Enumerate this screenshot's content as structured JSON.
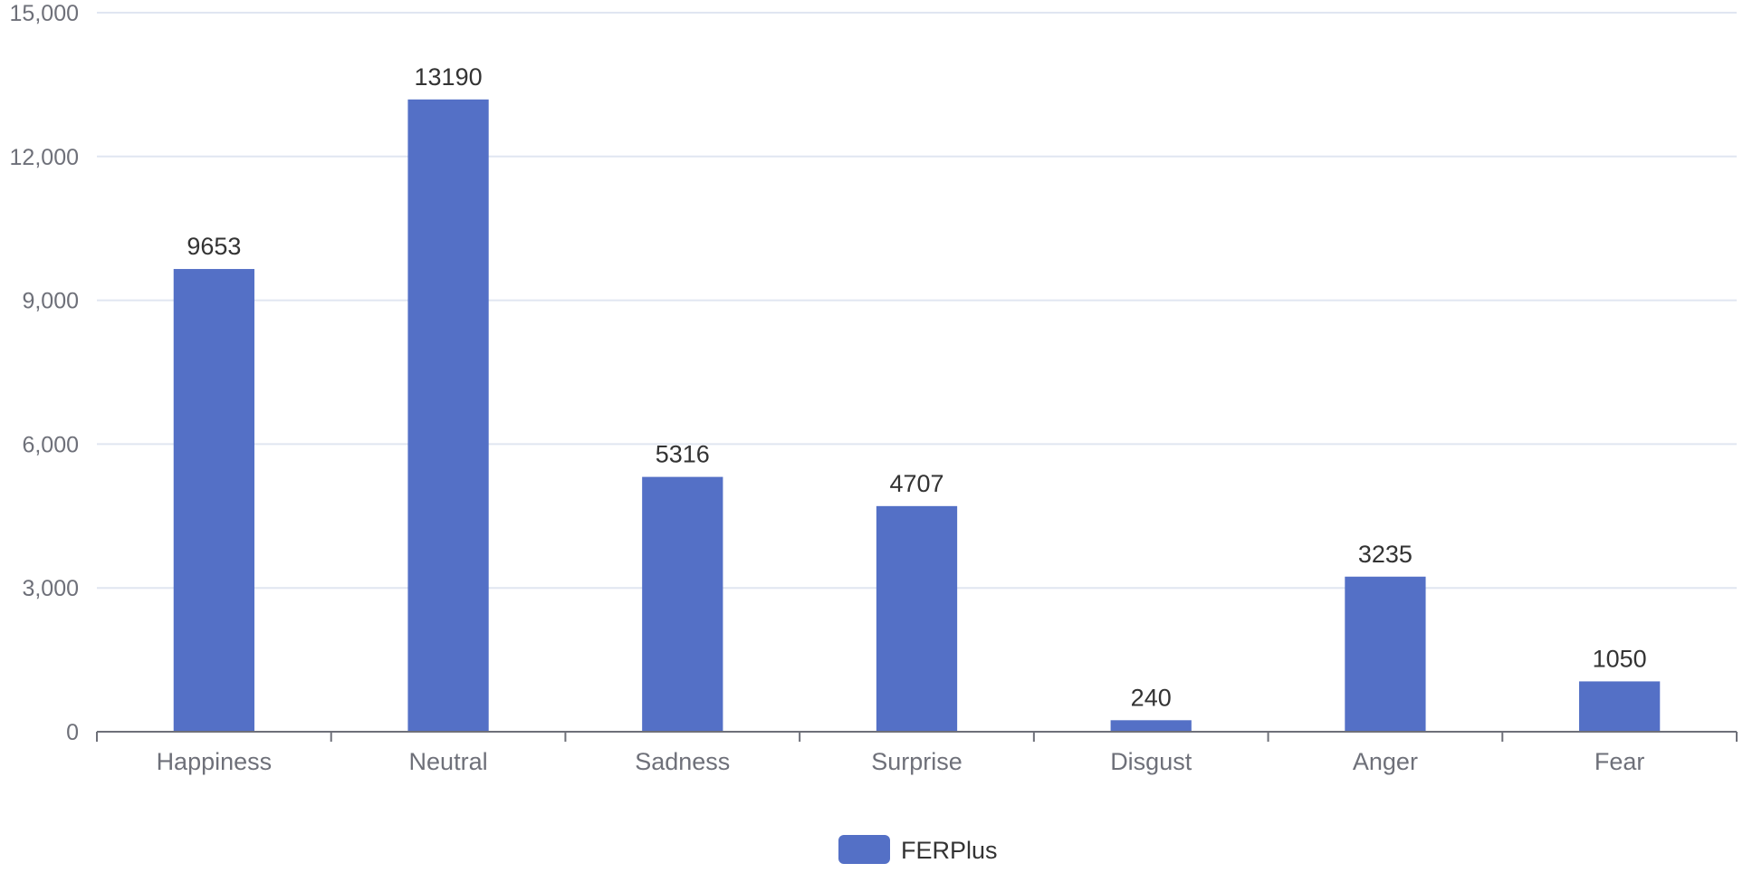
{
  "chart_data": {
    "type": "bar",
    "categories": [
      "Happiness",
      "Neutral",
      "Sadness",
      "Surprise",
      "Disgust",
      "Anger",
      "Fear"
    ],
    "series": [
      {
        "name": "FERPlus",
        "values": [
          9653,
          13190,
          5316,
          4707,
          240,
          3235,
          1050
        ],
        "color": "#5470c6"
      }
    ],
    "ylim": [
      0,
      15000
    ],
    "yticks": [
      0,
      3000,
      6000,
      9000,
      12000,
      15000
    ],
    "ytick_labels": [
      "0",
      "3,000",
      "6,000",
      "9,000",
      "12,000",
      "15,000"
    ],
    "grid": true,
    "legend_position": "bottom-center",
    "colors": {
      "bar": "#5470c6",
      "grid": "#e0e6f1",
      "axis": "#6e7079"
    }
  }
}
